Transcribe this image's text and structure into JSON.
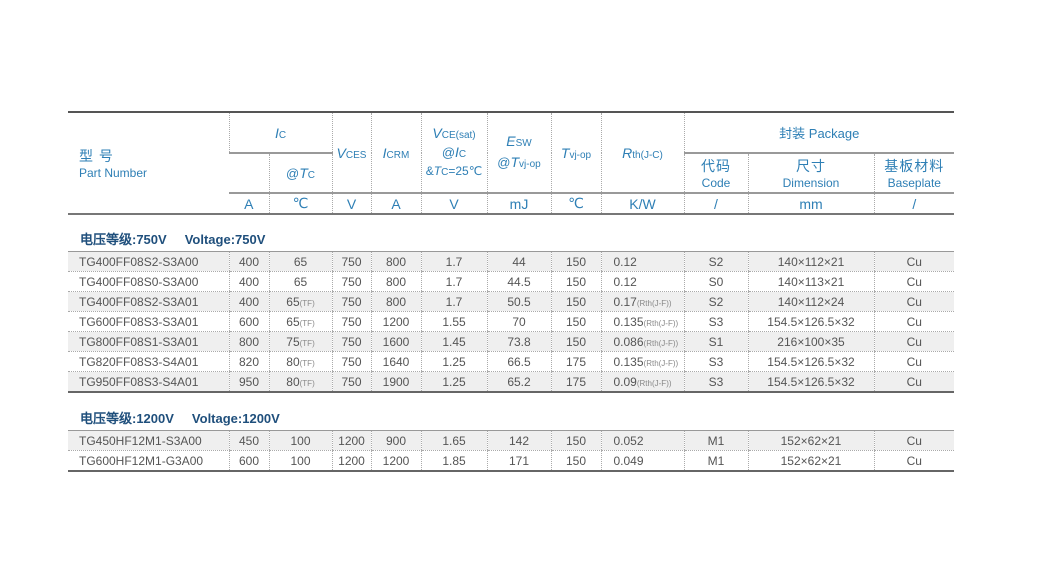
{
  "header": {
    "part_cn": "型  号",
    "part_en": "Part Number",
    "ic": {
      "sym": "I",
      "sub": "C"
    },
    "tc": {
      "pre": "@",
      "sym": "T",
      "sub": "C"
    },
    "vces": {
      "sym": "V",
      "sub": "CES"
    },
    "icrm": {
      "sym": "I",
      "sub": "CRM"
    },
    "vcesat": {
      "sym": "V",
      "sub": "CE(sat)",
      "line2_pre": "@",
      "line2_sym": "I",
      "line2_sub": "C",
      "line3_pre": "&",
      "line3_sym": "T",
      "line3_sub": "C",
      "line3_post": "=25℃"
    },
    "esw": {
      "sym": "E",
      "sub": "SW",
      "line2_pre": "@",
      "line2_sym": "T",
      "line2_sub": "vj-op"
    },
    "tvj": {
      "sym": "T",
      "sub": "vj-op"
    },
    "rth": {
      "sym": "R",
      "sub": "th(J-C)"
    },
    "package": "封装 Package",
    "code_cn": "代码",
    "code_en": "Code",
    "dim_cn": "尺寸",
    "dim_en": "Dimension",
    "base_cn": "基板材料",
    "base_en": "Baseplate",
    "units": [
      "A",
      "℃",
      "V",
      "A",
      "V",
      "mJ",
      "℃",
      "K/W",
      "/",
      "mm",
      "/"
    ]
  },
  "sections": [
    {
      "title_cn": "电压等级:750V",
      "title_en": "Voltage:750V",
      "rows": [
        {
          "part": "TG400FF08S2-S3A00",
          "ic": "400",
          "tc": "65",
          "tc_note": "",
          "vces": "750",
          "icrm": "800",
          "vcesat": "1.7",
          "esw": "44",
          "tvj": "150",
          "rth": "0.12",
          "rth_note": "",
          "code": "S2",
          "dim": "140×112×21",
          "base": "Cu"
        },
        {
          "part": "TG400FF08S0-S3A00",
          "ic": "400",
          "tc": "65",
          "tc_note": "",
          "vces": "750",
          "icrm": "800",
          "vcesat": "1.7",
          "esw": "44.5",
          "tvj": "150",
          "rth": "0.12",
          "rth_note": "",
          "code": "S0",
          "dim": "140×113×21",
          "base": "Cu"
        },
        {
          "part": "TG400FF08S2-S3A01",
          "ic": "400",
          "tc": "65",
          "tc_note": "(TF)",
          "vces": "750",
          "icrm": "800",
          "vcesat": "1.7",
          "esw": "50.5",
          "tvj": "150",
          "rth": "0.17",
          "rth_note": "(Rth(J-F))",
          "code": "S2",
          "dim": "140×112×24",
          "base": "Cu"
        },
        {
          "part": "TG600FF08S3-S3A01",
          "ic": "600",
          "tc": "65",
          "tc_note": "(TF)",
          "vces": "750",
          "icrm": "1200",
          "vcesat": "1.55",
          "esw": "70",
          "tvj": "150",
          "rth": "0.135",
          "rth_note": "(Rth(J-F))",
          "code": "S3",
          "dim": "154.5×126.5×32",
          "base": "Cu"
        },
        {
          "part": "TG800FF08S1-S3A01",
          "ic": "800",
          "tc": "75",
          "tc_note": "(TF)",
          "vces": "750",
          "icrm": "1600",
          "vcesat": "1.45",
          "esw": "73.8",
          "tvj": "150",
          "rth": "0.086",
          "rth_note": "(Rth(J-F))",
          "code": "S1",
          "dim": "216×100×35",
          "base": "Cu"
        },
        {
          "part": "TG820FF08S3-S4A01",
          "ic": "820",
          "tc": "80",
          "tc_note": "(TF)",
          "vces": "750",
          "icrm": "1640",
          "vcesat": "1.25",
          "esw": "66.5",
          "tvj": "175",
          "rth": "0.135",
          "rth_note": "(Rth(J-F))",
          "code": "S3",
          "dim": "154.5×126.5×32",
          "base": "Cu"
        },
        {
          "part": "TG950FF08S3-S4A01",
          "ic": "950",
          "tc": "80",
          "tc_note": "(TF)",
          "vces": "750",
          "icrm": "1900",
          "vcesat": "1.25",
          "esw": "65.2",
          "tvj": "175",
          "rth": "0.09",
          "rth_note": "(Rth(J-F))",
          "code": "S3",
          "dim": "154.5×126.5×32",
          "base": "Cu"
        }
      ]
    },
    {
      "title_cn": "电压等级:1200V",
      "title_en": "Voltage:1200V",
      "rows": [
        {
          "part": "TG450HF12M1-S3A00",
          "ic": "450",
          "tc": "100",
          "tc_note": "",
          "vces": "1200",
          "icrm": "900",
          "vcesat": "1.65",
          "esw": "142",
          "tvj": "150",
          "rth": "0.052",
          "rth_note": "",
          "code": "M1",
          "dim": "152×62×21",
          "base": "Cu"
        },
        {
          "part": "TG600HF12M1-G3A00",
          "ic": "600",
          "tc": "100",
          "tc_note": "",
          "vces": "1200",
          "icrm": "1200",
          "vcesat": "1.85",
          "esw": "171",
          "tvj": "150",
          "rth": "0.049",
          "rth_note": "",
          "code": "M1",
          "dim": "152×62×21",
          "base": "Cu"
        }
      ]
    }
  ],
  "colors": {
    "header_text": "#2e7fb5",
    "section_title": "#1f4f7c",
    "body_text": "#555555",
    "stripe": "#efefef"
  }
}
